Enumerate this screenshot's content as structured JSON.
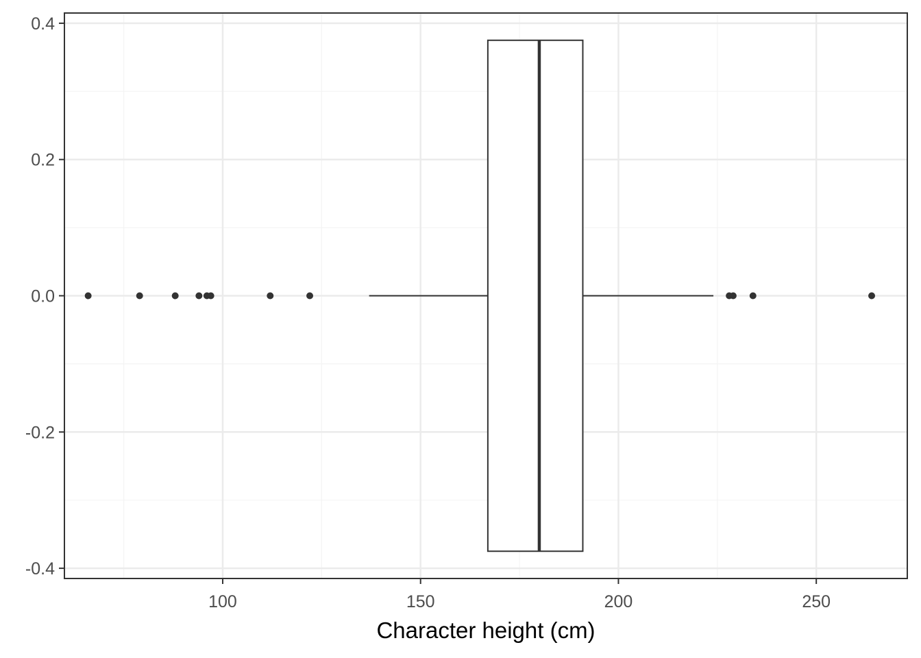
{
  "chart_data": {
    "type": "boxplot",
    "title": "",
    "xlabel": "Character height (cm)",
    "ylabel": "",
    "xlim": [
      60,
      273
    ],
    "ylim": [
      -0.415,
      0.415
    ],
    "x_ticks": [
      100,
      150,
      200,
      250
    ],
    "x_tick_labels": [
      "100",
      "150",
      "200",
      "250"
    ],
    "y_ticks": [
      -0.4,
      -0.2,
      0.0,
      0.2,
      0.4
    ],
    "y_tick_labels": [
      "-0.4",
      "-0.2",
      "0.0",
      "0.2",
      "0.4"
    ],
    "grid": true,
    "box": {
      "y_center": 0.0,
      "half_width": 0.375,
      "whisker_low": 137,
      "q1": 167,
      "median": 180,
      "q3": 191,
      "whisker_high": 224
    },
    "outliers": [
      66,
      79,
      88,
      94,
      96,
      97,
      112,
      122,
      228,
      229,
      234,
      264
    ],
    "colors": {
      "background": "#ffffff",
      "grid_major": "#ebebeb",
      "grid_minor": "#f4f4f4",
      "box_fill": "#ffffff",
      "line": "#333333",
      "panel_border": "#333333"
    }
  }
}
